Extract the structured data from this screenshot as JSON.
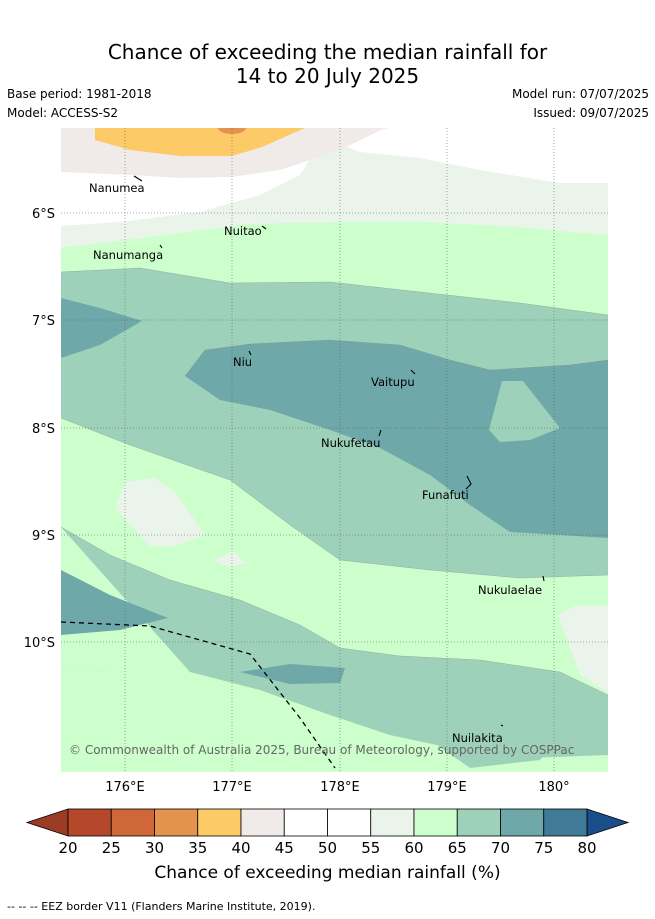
{
  "header": {
    "title_line1": "Chance of exceeding the median rainfall for",
    "title_line2": "14 to 20 July 2025",
    "base_period": "Base period: 1981-2018",
    "model": "Model: ACCESS-S2",
    "model_run": "Model run: 07/07/2025",
    "issued": "Issued: 09/07/2025"
  },
  "map": {
    "lat_ticks": [
      "6°S",
      "7°S",
      "8°S",
      "9°S",
      "10°S"
    ],
    "lon_ticks": [
      "176°E",
      "177°E",
      "178°E",
      "179°E",
      "180°"
    ],
    "places": [
      "Nanumea",
      "Nuitao",
      "Nanumanga",
      "Niu",
      "Vaitupu",
      "Nukufetau",
      "Funafuti",
      "Nukulaelae",
      "Nuilakita"
    ],
    "copyright": "© Commonwealth of Australia 2025, Bureau of Meteorology, supported by COSPPac"
  },
  "colorbar": {
    "ticks": [
      "20",
      "25",
      "30",
      "35",
      "40",
      "45",
      "50",
      "55",
      "60",
      "65",
      "70",
      "75",
      "80"
    ],
    "colors": [
      "#b5482a",
      "#d0673a",
      "#e4934f",
      "#fdca68",
      "#f0ebe9",
      "#ffffff",
      "#ffffff",
      "#eaf4ea",
      "#ccffcc",
      "#9ed1ba",
      "#6ea8a9",
      "#417a96"
    ],
    "under_color": "#9b3c25",
    "over_color": "#1a4e8a",
    "title": "Chance of exceeding median rainfall (%)"
  },
  "footer": {
    "eez_legend": "-- -- -- EEZ border V11 (Flanders Marine Institute, 2019)."
  }
}
